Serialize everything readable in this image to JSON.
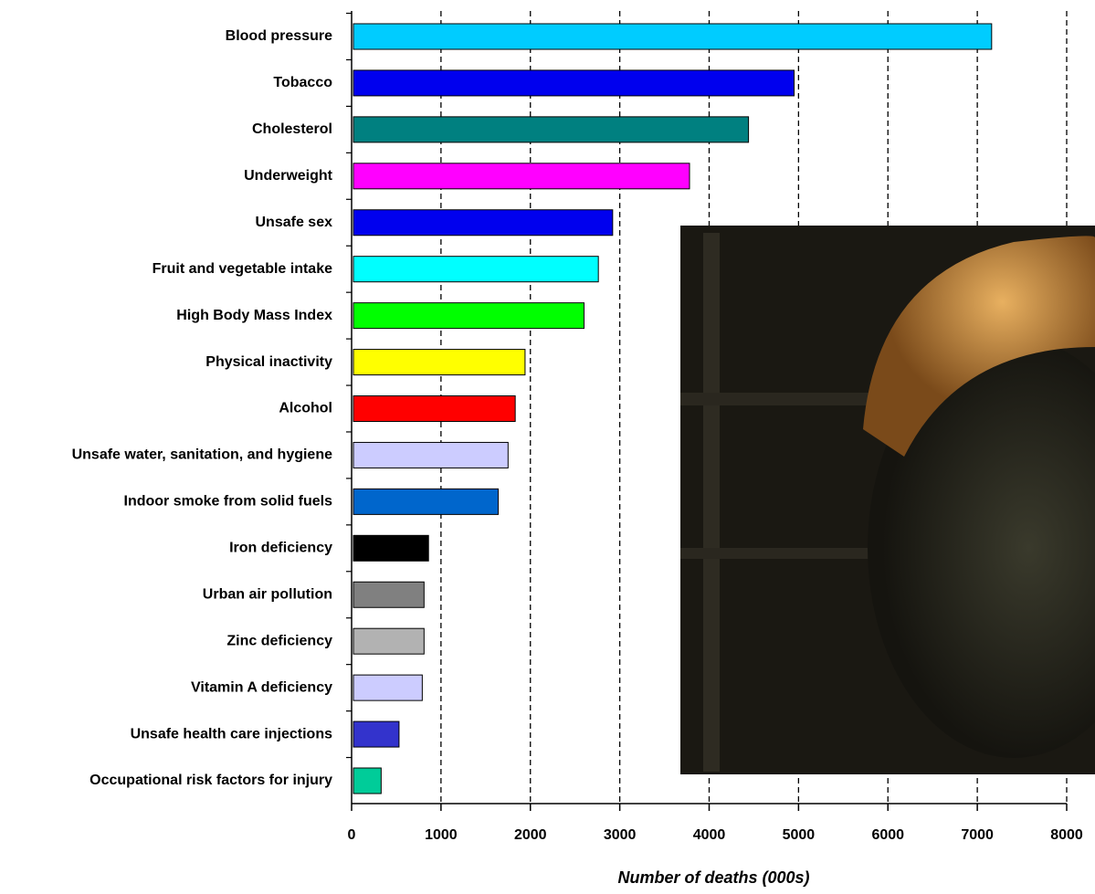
{
  "chart_data": {
    "type": "bar",
    "orientation": "horizontal",
    "xlabel": "Number of deaths (000s)",
    "categories": [
      "Blood pressure",
      "Tobacco",
      "Cholesterol",
      "Underweight",
      "Unsafe sex",
      "Fruit and vegetable intake",
      "High Body Mass Index",
      "Physical inactivity",
      "Alcohol",
      "Unsafe water, sanitation, and hygiene",
      "Indoor smoke from solid fuels",
      "Iron deficiency",
      "Urban air pollution",
      "Zinc deficiency",
      "Vitamin A deficiency",
      "Unsafe health care injections",
      "Occupational risk factors for injury"
    ],
    "values": [
      7140,
      4930,
      4420,
      3760,
      2900,
      2740,
      2580,
      1920,
      1810,
      1730,
      1620,
      840,
      790,
      790,
      770,
      510,
      310
    ],
    "colors": [
      "#00ccff",
      "#0000ee",
      "#008080",
      "#ff00ff",
      "#0000ee",
      "#00ffff",
      "#00ff00",
      "#ffff00",
      "#ff0000",
      "#ccccff",
      "#0066cc",
      "#000000",
      "#808080",
      "#b2b2b2",
      "#ccccff",
      "#3333cc",
      "#00cc99"
    ],
    "xlim": [
      0,
      8000
    ],
    "xticks": [
      0,
      1000,
      2000,
      3000,
      4000,
      5000,
      6000,
      7000,
      8000
    ],
    "grid": true
  }
}
